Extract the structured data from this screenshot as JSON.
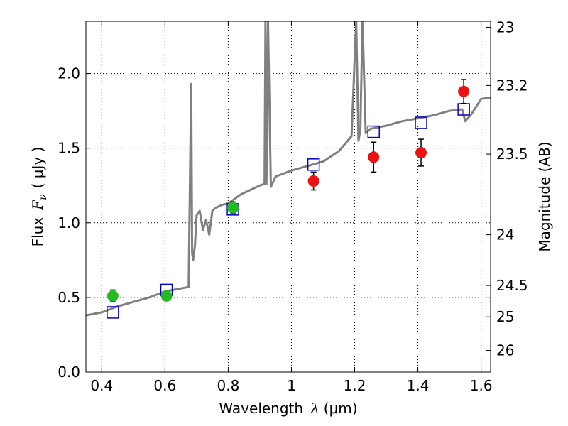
{
  "chart_data": {
    "type": "scatter",
    "xlabel_prefix": "Wavelength",
    "xlabel_symbol": "λ",
    "xlabel_unit": "(μm)",
    "ylabel_prefix": "Flux",
    "ylabel_symbol": "F",
    "ylabel_subscript": "ν",
    "ylabel_unit": "( μJy )",
    "y2label": "Magnitude (AB)",
    "xlim": [
      0.35,
      1.63
    ],
    "ylim": [
      0.0,
      2.35
    ],
    "grid": true,
    "colors": {
      "spectrum": "#808080",
      "model": "#0000cc",
      "green": "#22bb22",
      "red": "#ee1111",
      "errorbar": "#000000"
    },
    "x_ticks": [
      {
        "value": 0.4,
        "label": "0.4"
      },
      {
        "value": 0.6,
        "label": "0.6"
      },
      {
        "value": 0.8,
        "label": "0.8"
      },
      {
        "value": 1.0,
        "label": "1"
      },
      {
        "value": 1.2,
        "label": "1.2"
      },
      {
        "value": 1.4,
        "label": "1.4"
      },
      {
        "value": 1.6,
        "label": "1.6"
      }
    ],
    "y_ticks": [
      {
        "value": 0.0,
        "label": "0.0"
      },
      {
        "value": 0.5,
        "label": "0.5"
      },
      {
        "value": 1.0,
        "label": "1.0"
      },
      {
        "value": 1.5,
        "label": "1.5"
      },
      {
        "value": 2.0,
        "label": "2.0"
      }
    ],
    "magnitude_ticks": [
      {
        "flux": 2.31,
        "label": "23"
      },
      {
        "flux": 1.92,
        "label": "23.2"
      },
      {
        "flux": 1.46,
        "label": "23.5"
      },
      {
        "flux": 0.92,
        "label": "24"
      },
      {
        "flux": 0.58,
        "label": "24.5"
      },
      {
        "flux": 0.37,
        "label": "25"
      },
      {
        "flux": 0.145,
        "label": "26"
      }
    ],
    "spectrum": {
      "x": [
        0.35,
        0.4,
        0.45,
        0.5,
        0.55,
        0.6,
        0.65,
        0.675,
        0.683,
        0.686,
        0.689,
        0.695,
        0.7,
        0.71,
        0.72,
        0.73,
        0.74,
        0.75,
        0.76,
        0.78,
        0.8,
        0.82,
        0.84,
        0.86,
        0.88,
        0.9,
        0.915,
        0.918,
        0.921,
        0.926,
        0.935,
        0.95,
        1.0,
        1.05,
        1.1,
        1.15,
        1.19,
        1.205,
        1.212,
        1.218,
        1.225,
        1.235,
        1.25,
        1.3,
        1.35,
        1.4,
        1.45,
        1.5,
        1.54,
        1.55,
        1.57,
        1.6,
        1.63
      ],
      "y": [
        0.38,
        0.4,
        0.44,
        0.47,
        0.5,
        0.54,
        0.56,
        0.57,
        1.93,
        0.8,
        0.75,
        0.85,
        1.05,
        1.08,
        0.95,
        1.02,
        0.92,
        1.08,
        1.1,
        1.12,
        1.13,
        1.16,
        1.19,
        1.21,
        1.23,
        1.25,
        1.26,
        2.35,
        1.26,
        2.35,
        1.24,
        1.31,
        1.35,
        1.38,
        1.41,
        1.48,
        1.58,
        2.35,
        1.55,
        1.62,
        2.35,
        1.6,
        1.63,
        1.65,
        1.68,
        1.7,
        1.72,
        1.75,
        1.76,
        1.68,
        1.73,
        1.83,
        1.84
      ]
    },
    "model_points": {
      "x": [
        0.435,
        0.605,
        0.815,
        1.07,
        1.26,
        1.41,
        1.545
      ],
      "y": [
        0.4,
        0.55,
        1.09,
        1.39,
        1.61,
        1.67,
        1.76
      ]
    },
    "observed_green": {
      "x": [
        0.435,
        0.605,
        0.815
      ],
      "y": [
        0.51,
        0.51,
        1.1
      ],
      "yerr": [
        0.04,
        0.03,
        0.04
      ]
    },
    "observed_red": {
      "x": [
        1.07,
        1.26,
        1.41,
        1.545
      ],
      "y": [
        1.28,
        1.44,
        1.47,
        1.88
      ],
      "yerr": [
        0.06,
        0.1,
        0.09,
        0.08
      ]
    }
  }
}
